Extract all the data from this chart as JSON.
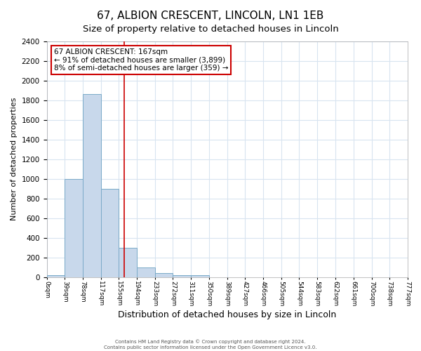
{
  "title": "67, ALBION CRESCENT, LINCOLN, LN1 1EB",
  "subtitle": "Size of property relative to detached houses in Lincoln",
  "xlabel": "Distribution of detached houses by size in Lincoln",
  "ylabel": "Number of detached properties",
  "annotation_line1": "67 ALBION CRESCENT: 167sqm",
  "annotation_line2": "← 91% of detached houses are smaller (3,899)",
  "annotation_line3": "8% of semi-detached houses are larger (359) →",
  "property_size": 167,
  "bar_edges": [
    0,
    39,
    78,
    117,
    155,
    194,
    233,
    272,
    311,
    350,
    389,
    427,
    466,
    505,
    544,
    583,
    622,
    661,
    700,
    738,
    777
  ],
  "bar_heights": [
    20,
    1000,
    1860,
    900,
    300,
    100,
    40,
    20,
    15,
    0,
    0,
    0,
    0,
    0,
    0,
    0,
    0,
    0,
    0,
    0
  ],
  "bar_color": "#c8d8eb",
  "bar_edge_color": "#7aaac8",
  "vline_color": "#cc0000",
  "vline_x": 167,
  "annotation_box_color": "#ffffff",
  "annotation_box_edge": "#cc0000",
  "ylim": [
    0,
    2400
  ],
  "yticks": [
    0,
    200,
    400,
    600,
    800,
    1000,
    1200,
    1400,
    1600,
    1800,
    2000,
    2200,
    2400
  ],
  "title_fontsize": 11,
  "subtitle_fontsize": 9.5,
  "xlabel_fontsize": 9,
  "ylabel_fontsize": 8,
  "footer_line1": "Contains HM Land Registry data © Crown copyright and database right 2024.",
  "footer_line2": "Contains public sector information licensed under the Open Government Licence v3.0.",
  "background_color": "#ffffff",
  "plot_background": "#ffffff",
  "grid_color": "#d8e4f0"
}
